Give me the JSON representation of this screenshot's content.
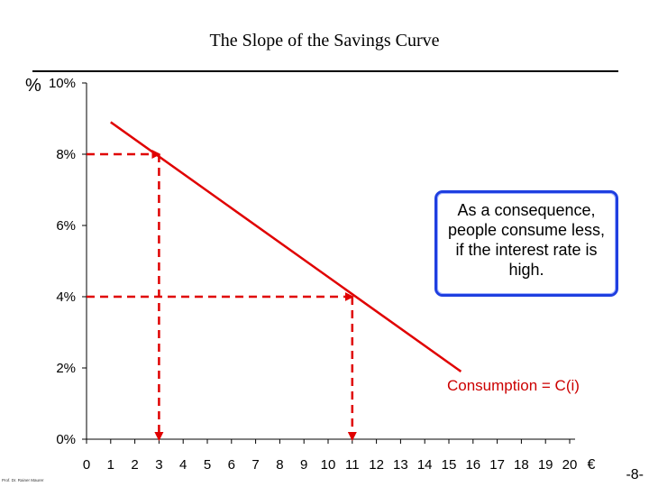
{
  "slide": {
    "title": "The Slope of the Savings Curve",
    "y_unit": "%",
    "callout_text": "As a consequence, people consume less, if the interest rate is high.",
    "curve_label": "Consumption = C(i)",
    "footer_author": "Prof. Dr. Rainer Maurer",
    "page_number": "-8-"
  },
  "chart_data": {
    "type": "line",
    "title": "The Slope of the Savings Curve",
    "xlabel": "€",
    "ylabel": "%",
    "x_ticks": [
      "0",
      "1",
      "2",
      "3",
      "4",
      "5",
      "6",
      "7",
      "8",
      "9",
      "10",
      "11",
      "12",
      "13",
      "14",
      "15",
      "16",
      "17",
      "18",
      "19",
      "20"
    ],
    "y_ticks": [
      "0%",
      "2%",
      "4%",
      "6%",
      "8%",
      "10%"
    ],
    "xlim": [
      0,
      20
    ],
    "ylim": [
      0,
      10
    ],
    "grid": false,
    "series": [
      {
        "x": [
          1,
          15.5
        ],
        "y": [
          8.9,
          1.9
        ],
        "color": "#e00000"
      }
    ],
    "annotations": [
      {
        "from": [
          0,
          8
        ],
        "to": [
          3,
          8
        ],
        "color": "#e00000",
        "style": "dashed-arrow"
      },
      {
        "from": [
          3,
          8
        ],
        "to": [
          3,
          0
        ],
        "color": "#e00000",
        "style": "dashed-arrow"
      },
      {
        "from": [
          0,
          4
        ],
        "to": [
          11,
          4
        ],
        "color": "#e00000",
        "style": "dashed-arrow"
      },
      {
        "from": [
          11,
          4
        ],
        "to": [
          11,
          0
        ],
        "color": "#e00000",
        "style": "dashed-arrow"
      }
    ]
  }
}
